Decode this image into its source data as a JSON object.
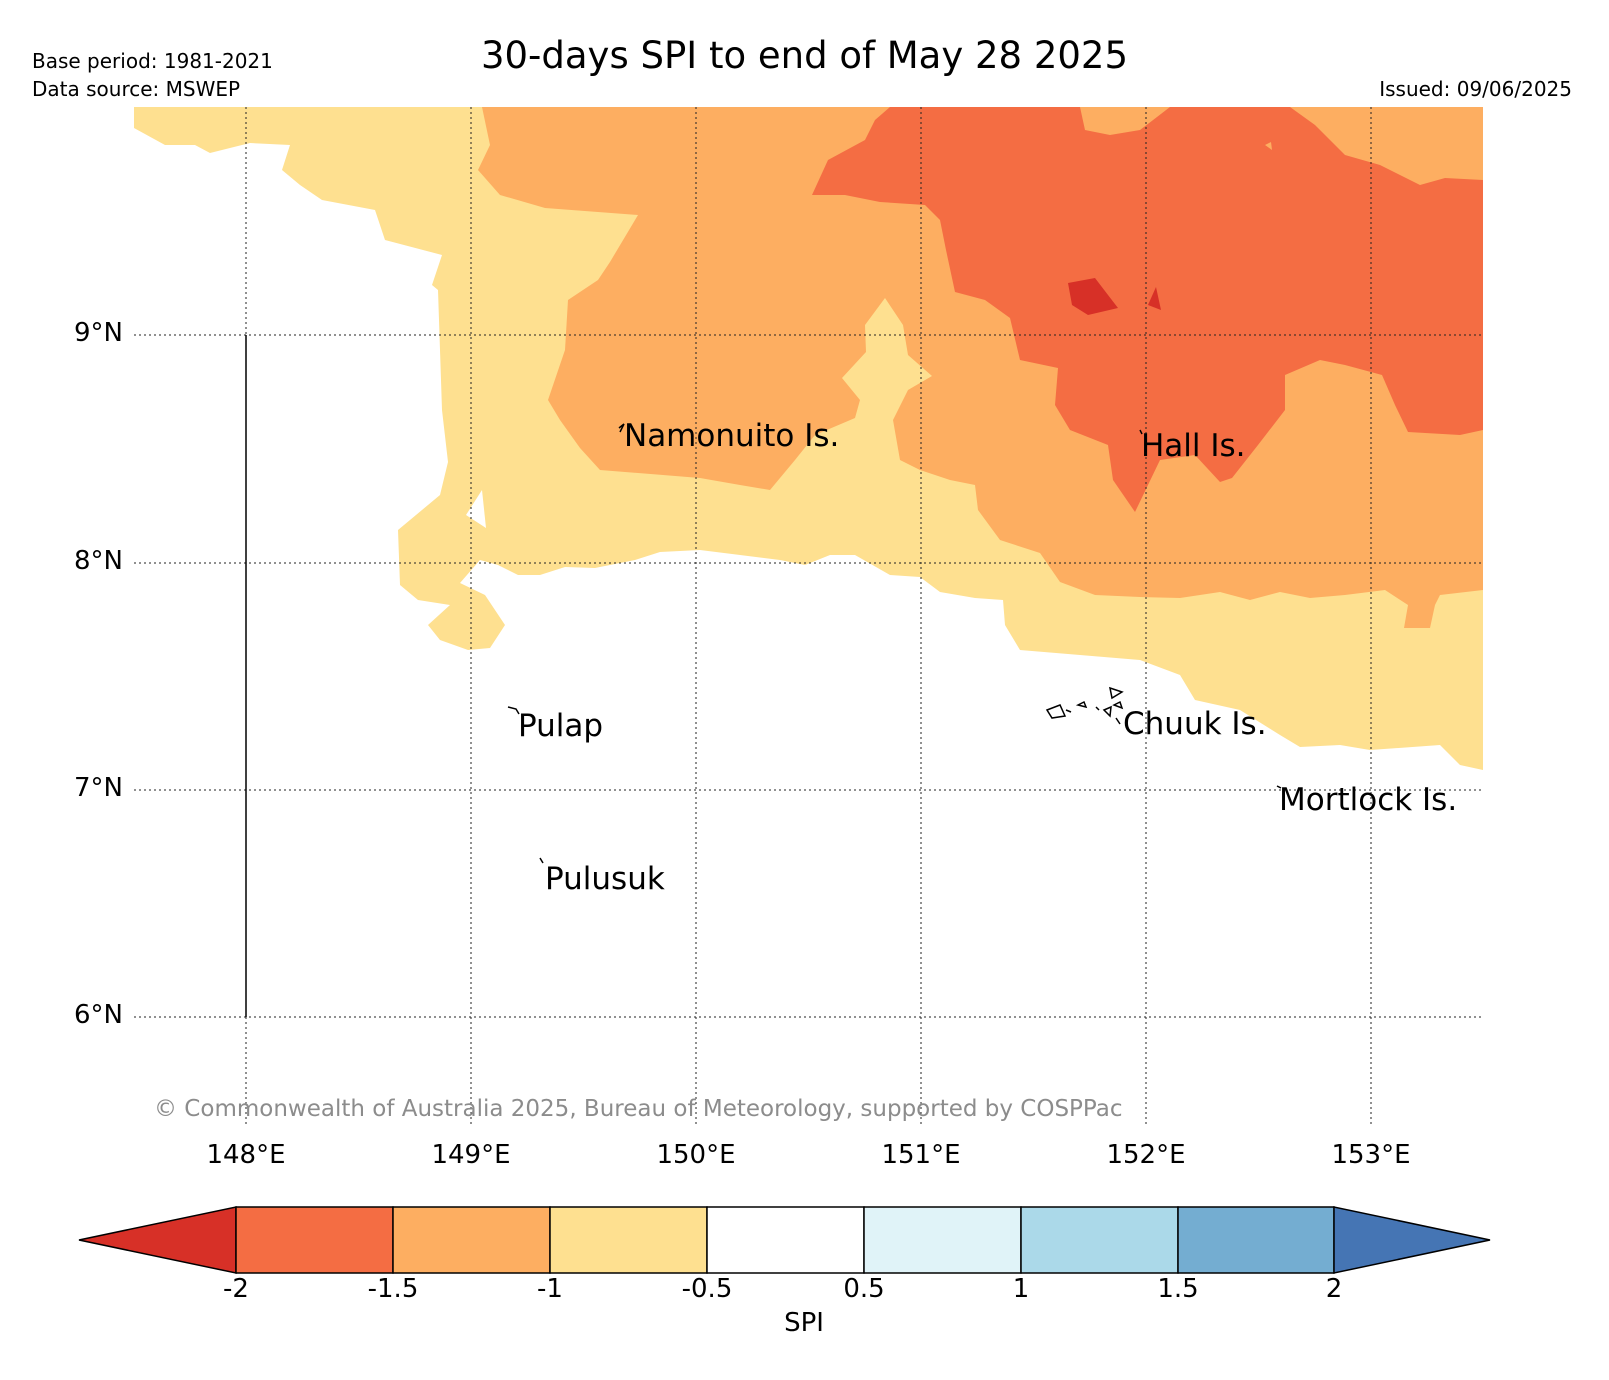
{
  "title": "30-days SPI to end of May 28 2025",
  "meta": {
    "base_period": "Base period: 1981-2021",
    "data_source": "Data source: MSWEP",
    "issued": "Issued: 09/06/2025"
  },
  "copyright": "© Commonwealth of Australia 2025, Bureau of Meteorology, supported by COSPPac",
  "axes": {
    "latitudes": [
      "9°N",
      "8°N",
      "7°N",
      "6°N"
    ],
    "longitudes": [
      "148°E",
      "149°E",
      "150°E",
      "151°E",
      "152°E",
      "153°E"
    ]
  },
  "places": [
    {
      "name": "Namonuito Is.",
      "lon": 149.68,
      "lat": 8.6
    },
    {
      "name": "Hall Is.",
      "lon": 151.98,
      "lat": 8.55
    },
    {
      "name": "Pulap",
      "lon": 149.2,
      "lat": 7.35
    },
    {
      "name": "Chuuk Is.",
      "lon": 151.8,
      "lat": 7.35
    },
    {
      "name": "Mortlock Is.",
      "lon": 152.6,
      "lat": 7.01
    },
    {
      "name": "Pulusuk",
      "lon": 149.31,
      "lat": 6.7
    }
  ],
  "colorbar": {
    "label": "SPI",
    "ticks": [
      "-2",
      "-1.5",
      "-1",
      "-0.5",
      "0.5",
      "1",
      "1.5",
      "2"
    ],
    "colors": [
      "#d73027",
      "#f46d43",
      "#fdae61",
      "#fee090",
      "#ffffff",
      "#e0f3f8",
      "#abd9e9",
      "#74add1",
      "#4575b4"
    ]
  },
  "spi_classes": {
    "yellow": "-1 to -0.5",
    "light_orange": "-1.5 to -1",
    "orange": "-2 to -1.5",
    "red": "below -2",
    "white": "-0.5 to 0.5"
  }
}
